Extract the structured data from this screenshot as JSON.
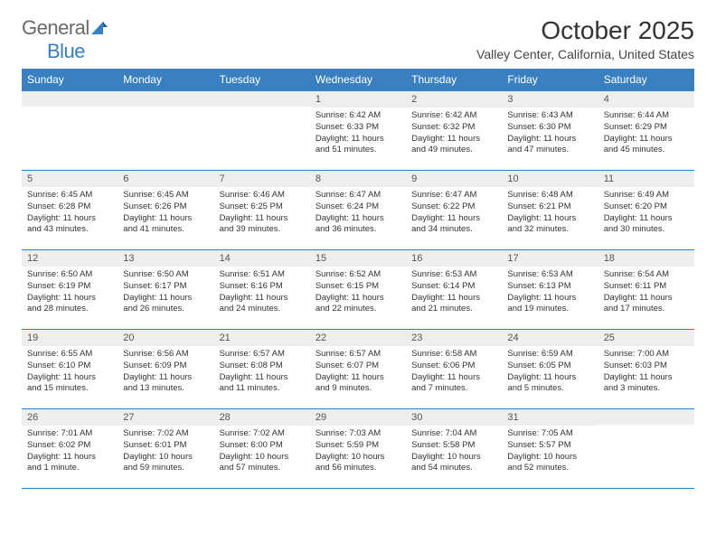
{
  "logo": {
    "text1": "General",
    "text2": "Blue"
  },
  "title": "October 2025",
  "location": "Valley Center, California, United States",
  "colors": {
    "header_bg": "#3a7fbf",
    "header_fg": "#ffffff",
    "num_band_bg": "#eeeeee",
    "num_band_fg": "#555555",
    "border": "#3a7fbf",
    "text": "#333333",
    "logo_gray": "#6a6a6a",
    "logo_blue": "#3a7fbf"
  },
  "day_headers": [
    "Sunday",
    "Monday",
    "Tuesday",
    "Wednesday",
    "Thursday",
    "Friday",
    "Saturday"
  ],
  "weeks": [
    [
      null,
      null,
      null,
      {
        "n": "1",
        "sunrise": "6:42 AM",
        "sunset": "6:33 PM",
        "daylight": "11 hours and 51 minutes."
      },
      {
        "n": "2",
        "sunrise": "6:42 AM",
        "sunset": "6:32 PM",
        "daylight": "11 hours and 49 minutes."
      },
      {
        "n": "3",
        "sunrise": "6:43 AM",
        "sunset": "6:30 PM",
        "daylight": "11 hours and 47 minutes."
      },
      {
        "n": "4",
        "sunrise": "6:44 AM",
        "sunset": "6:29 PM",
        "daylight": "11 hours and 45 minutes."
      }
    ],
    [
      {
        "n": "5",
        "sunrise": "6:45 AM",
        "sunset": "6:28 PM",
        "daylight": "11 hours and 43 minutes."
      },
      {
        "n": "6",
        "sunrise": "6:45 AM",
        "sunset": "6:26 PM",
        "daylight": "11 hours and 41 minutes."
      },
      {
        "n": "7",
        "sunrise": "6:46 AM",
        "sunset": "6:25 PM",
        "daylight": "11 hours and 39 minutes."
      },
      {
        "n": "8",
        "sunrise": "6:47 AM",
        "sunset": "6:24 PM",
        "daylight": "11 hours and 36 minutes."
      },
      {
        "n": "9",
        "sunrise": "6:47 AM",
        "sunset": "6:22 PM",
        "daylight": "11 hours and 34 minutes."
      },
      {
        "n": "10",
        "sunrise": "6:48 AM",
        "sunset": "6:21 PM",
        "daylight": "11 hours and 32 minutes."
      },
      {
        "n": "11",
        "sunrise": "6:49 AM",
        "sunset": "6:20 PM",
        "daylight": "11 hours and 30 minutes."
      }
    ],
    [
      {
        "n": "12",
        "sunrise": "6:50 AM",
        "sunset": "6:19 PM",
        "daylight": "11 hours and 28 minutes."
      },
      {
        "n": "13",
        "sunrise": "6:50 AM",
        "sunset": "6:17 PM",
        "daylight": "11 hours and 26 minutes."
      },
      {
        "n": "14",
        "sunrise": "6:51 AM",
        "sunset": "6:16 PM",
        "daylight": "11 hours and 24 minutes."
      },
      {
        "n": "15",
        "sunrise": "6:52 AM",
        "sunset": "6:15 PM",
        "daylight": "11 hours and 22 minutes."
      },
      {
        "n": "16",
        "sunrise": "6:53 AM",
        "sunset": "6:14 PM",
        "daylight": "11 hours and 21 minutes."
      },
      {
        "n": "17",
        "sunrise": "6:53 AM",
        "sunset": "6:13 PM",
        "daylight": "11 hours and 19 minutes."
      },
      {
        "n": "18",
        "sunrise": "6:54 AM",
        "sunset": "6:11 PM",
        "daylight": "11 hours and 17 minutes."
      }
    ],
    [
      {
        "n": "19",
        "sunrise": "6:55 AM",
        "sunset": "6:10 PM",
        "daylight": "11 hours and 15 minutes."
      },
      {
        "n": "20",
        "sunrise": "6:56 AM",
        "sunset": "6:09 PM",
        "daylight": "11 hours and 13 minutes."
      },
      {
        "n": "21",
        "sunrise": "6:57 AM",
        "sunset": "6:08 PM",
        "daylight": "11 hours and 11 minutes."
      },
      {
        "n": "22",
        "sunrise": "6:57 AM",
        "sunset": "6:07 PM",
        "daylight": "11 hours and 9 minutes."
      },
      {
        "n": "23",
        "sunrise": "6:58 AM",
        "sunset": "6:06 PM",
        "daylight": "11 hours and 7 minutes."
      },
      {
        "n": "24",
        "sunrise": "6:59 AM",
        "sunset": "6:05 PM",
        "daylight": "11 hours and 5 minutes."
      },
      {
        "n": "25",
        "sunrise": "7:00 AM",
        "sunset": "6:03 PM",
        "daylight": "11 hours and 3 minutes."
      }
    ],
    [
      {
        "n": "26",
        "sunrise": "7:01 AM",
        "sunset": "6:02 PM",
        "daylight": "11 hours and 1 minute."
      },
      {
        "n": "27",
        "sunrise": "7:02 AM",
        "sunset": "6:01 PM",
        "daylight": "10 hours and 59 minutes."
      },
      {
        "n": "28",
        "sunrise": "7:02 AM",
        "sunset": "6:00 PM",
        "daylight": "10 hours and 57 minutes."
      },
      {
        "n": "29",
        "sunrise": "7:03 AM",
        "sunset": "5:59 PM",
        "daylight": "10 hours and 56 minutes."
      },
      {
        "n": "30",
        "sunrise": "7:04 AM",
        "sunset": "5:58 PM",
        "daylight": "10 hours and 54 minutes."
      },
      {
        "n": "31",
        "sunrise": "7:05 AM",
        "sunset": "5:57 PM",
        "daylight": "10 hours and 52 minutes."
      },
      null
    ]
  ],
  "labels": {
    "sunrise": "Sunrise:",
    "sunset": "Sunset:",
    "daylight": "Daylight:"
  }
}
